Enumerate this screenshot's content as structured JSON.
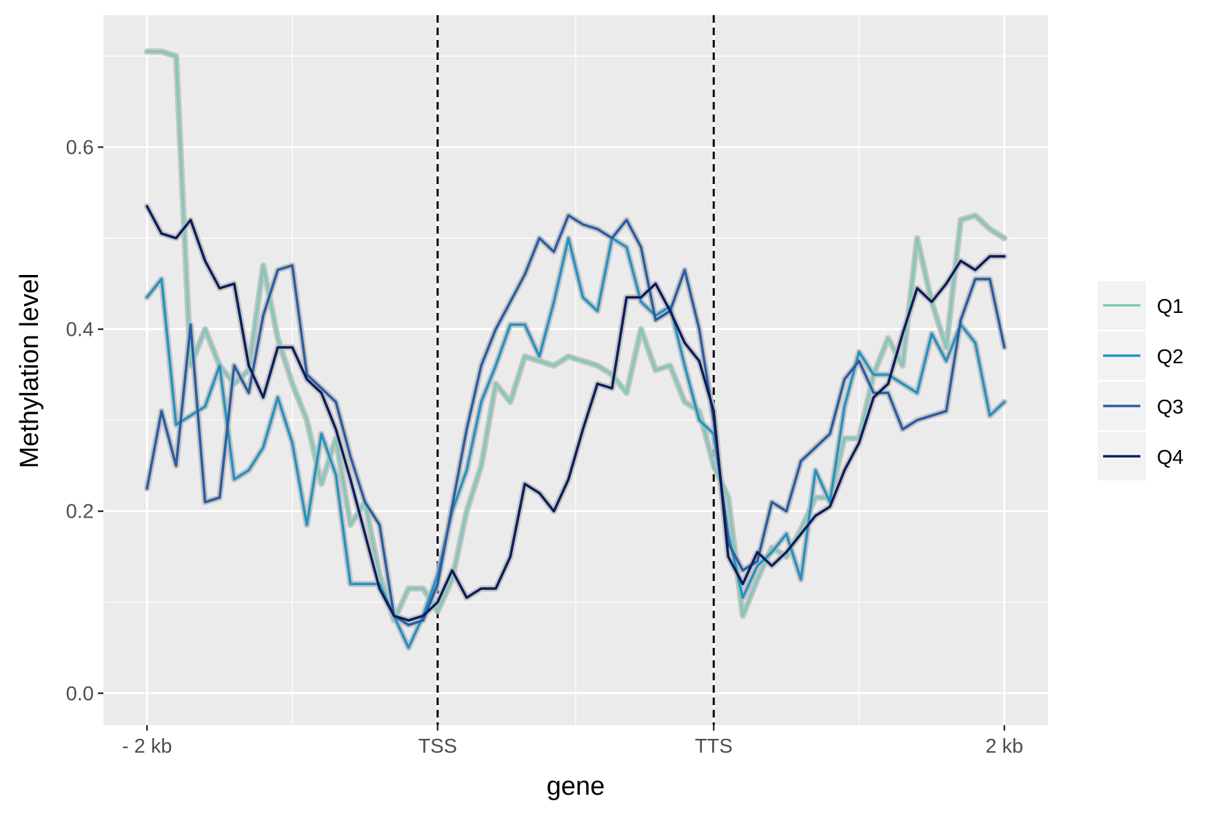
{
  "chart_data": {
    "type": "line",
    "xlabel": "gene",
    "ylabel": "Methylation level",
    "x_ticks": [
      {
        "value": 0,
        "label": "- 2 kb"
      },
      {
        "value": 20,
        "label": "TSS"
      },
      {
        "value": 39,
        "label": "TTS"
      },
      {
        "value": 59,
        "label": "2 kb"
      }
    ],
    "x_minor_gridlines": [
      10,
      29.5,
      49
    ],
    "y_ticks": [
      0.0,
      0.2,
      0.4,
      0.6
    ],
    "y_tick_labels": [
      "0.0",
      "0.2",
      "0.4",
      "0.6"
    ],
    "y_minor_gridlines": [
      0.1,
      0.3,
      0.5,
      0.7
    ],
    "xlim": [
      -3,
      62
    ],
    "ylim": [
      -0.035,
      0.745
    ],
    "vlines": [
      20,
      39
    ],
    "grid": true,
    "legend_position": "right",
    "background": "#ebebeb",
    "x": [
      0,
      1,
      2,
      3,
      4,
      5,
      6,
      7,
      8,
      9,
      10,
      11,
      12,
      13,
      14,
      15,
      16,
      17,
      18,
      19,
      20,
      21,
      22,
      23,
      24,
      25,
      26,
      27,
      28,
      29,
      30,
      31,
      32,
      33,
      34,
      35,
      36,
      37,
      38,
      39,
      40,
      41,
      42,
      43,
      44,
      45,
      46,
      47,
      48,
      49,
      50,
      51,
      52,
      53,
      54,
      55,
      56,
      57,
      58,
      59
    ],
    "series": [
      {
        "name": "Q1",
        "color": "#80c9b8",
        "values": [
          0.705,
          0.705,
          0.7,
          0.36,
          0.4,
          0.36,
          0.34,
          0.355,
          0.47,
          0.39,
          0.34,
          0.3,
          0.23,
          0.28,
          0.185,
          0.21,
          0.13,
          0.08,
          0.115,
          0.115,
          0.09,
          0.125,
          0.2,
          0.25,
          0.34,
          0.32,
          0.37,
          0.365,
          0.36,
          0.37,
          0.365,
          0.36,
          0.35,
          0.33,
          0.4,
          0.355,
          0.36,
          0.32,
          0.31,
          0.25,
          0.215,
          0.085,
          0.125,
          0.16,
          0.15,
          0.18,
          0.215,
          0.215,
          0.28,
          0.28,
          0.35,
          0.39,
          0.36,
          0.5,
          0.43,
          0.38,
          0.52,
          0.525,
          0.51,
          0.5
        ]
      },
      {
        "name": "Q2",
        "color": "#2492c2",
        "values": [
          0.435,
          0.455,
          0.295,
          0.305,
          0.315,
          0.36,
          0.235,
          0.245,
          0.27,
          0.325,
          0.275,
          0.185,
          0.285,
          0.24,
          0.12,
          0.12,
          0.12,
          0.085,
          0.05,
          0.085,
          0.13,
          0.2,
          0.245,
          0.32,
          0.36,
          0.405,
          0.405,
          0.37,
          0.43,
          0.5,
          0.435,
          0.42,
          0.5,
          0.49,
          0.43,
          0.415,
          0.425,
          0.36,
          0.3,
          0.285,
          0.175,
          0.105,
          0.14,
          0.155,
          0.175,
          0.125,
          0.245,
          0.21,
          0.315,
          0.375,
          0.35,
          0.35,
          0.34,
          0.33,
          0.395,
          0.365,
          0.405,
          0.385,
          0.305,
          0.32
        ]
      },
      {
        "name": "Q3",
        "color": "#2a5da3",
        "values": [
          0.225,
          0.31,
          0.25,
          0.405,
          0.21,
          0.215,
          0.36,
          0.33,
          0.415,
          0.465,
          0.47,
          0.35,
          0.335,
          0.32,
          0.26,
          0.21,
          0.185,
          0.085,
          0.075,
          0.08,
          0.12,
          0.205,
          0.29,
          0.36,
          0.4,
          0.43,
          0.46,
          0.5,
          0.485,
          0.525,
          0.515,
          0.51,
          0.5,
          0.52,
          0.49,
          0.41,
          0.42,
          0.465,
          0.4,
          0.3,
          0.165,
          0.135,
          0.145,
          0.21,
          0.2,
          0.255,
          0.27,
          0.285,
          0.345,
          0.365,
          0.33,
          0.33,
          0.29,
          0.3,
          0.305,
          0.31,
          0.41,
          0.455,
          0.455,
          0.38
        ]
      },
      {
        "name": "Q4",
        "color": "#0c1d5c",
        "values": [
          0.535,
          0.505,
          0.5,
          0.52,
          0.475,
          0.445,
          0.45,
          0.36,
          0.325,
          0.38,
          0.38,
          0.345,
          0.33,
          0.29,
          0.235,
          0.175,
          0.115,
          0.085,
          0.08,
          0.085,
          0.1,
          0.135,
          0.105,
          0.115,
          0.115,
          0.15,
          0.23,
          0.22,
          0.2,
          0.235,
          0.29,
          0.34,
          0.335,
          0.435,
          0.435,
          0.45,
          0.42,
          0.385,
          0.365,
          0.31,
          0.15,
          0.12,
          0.155,
          0.14,
          0.155,
          0.175,
          0.195,
          0.205,
          0.245,
          0.275,
          0.325,
          0.34,
          0.395,
          0.445,
          0.43,
          0.45,
          0.475,
          0.465,
          0.48,
          0.48
        ]
      }
    ]
  }
}
